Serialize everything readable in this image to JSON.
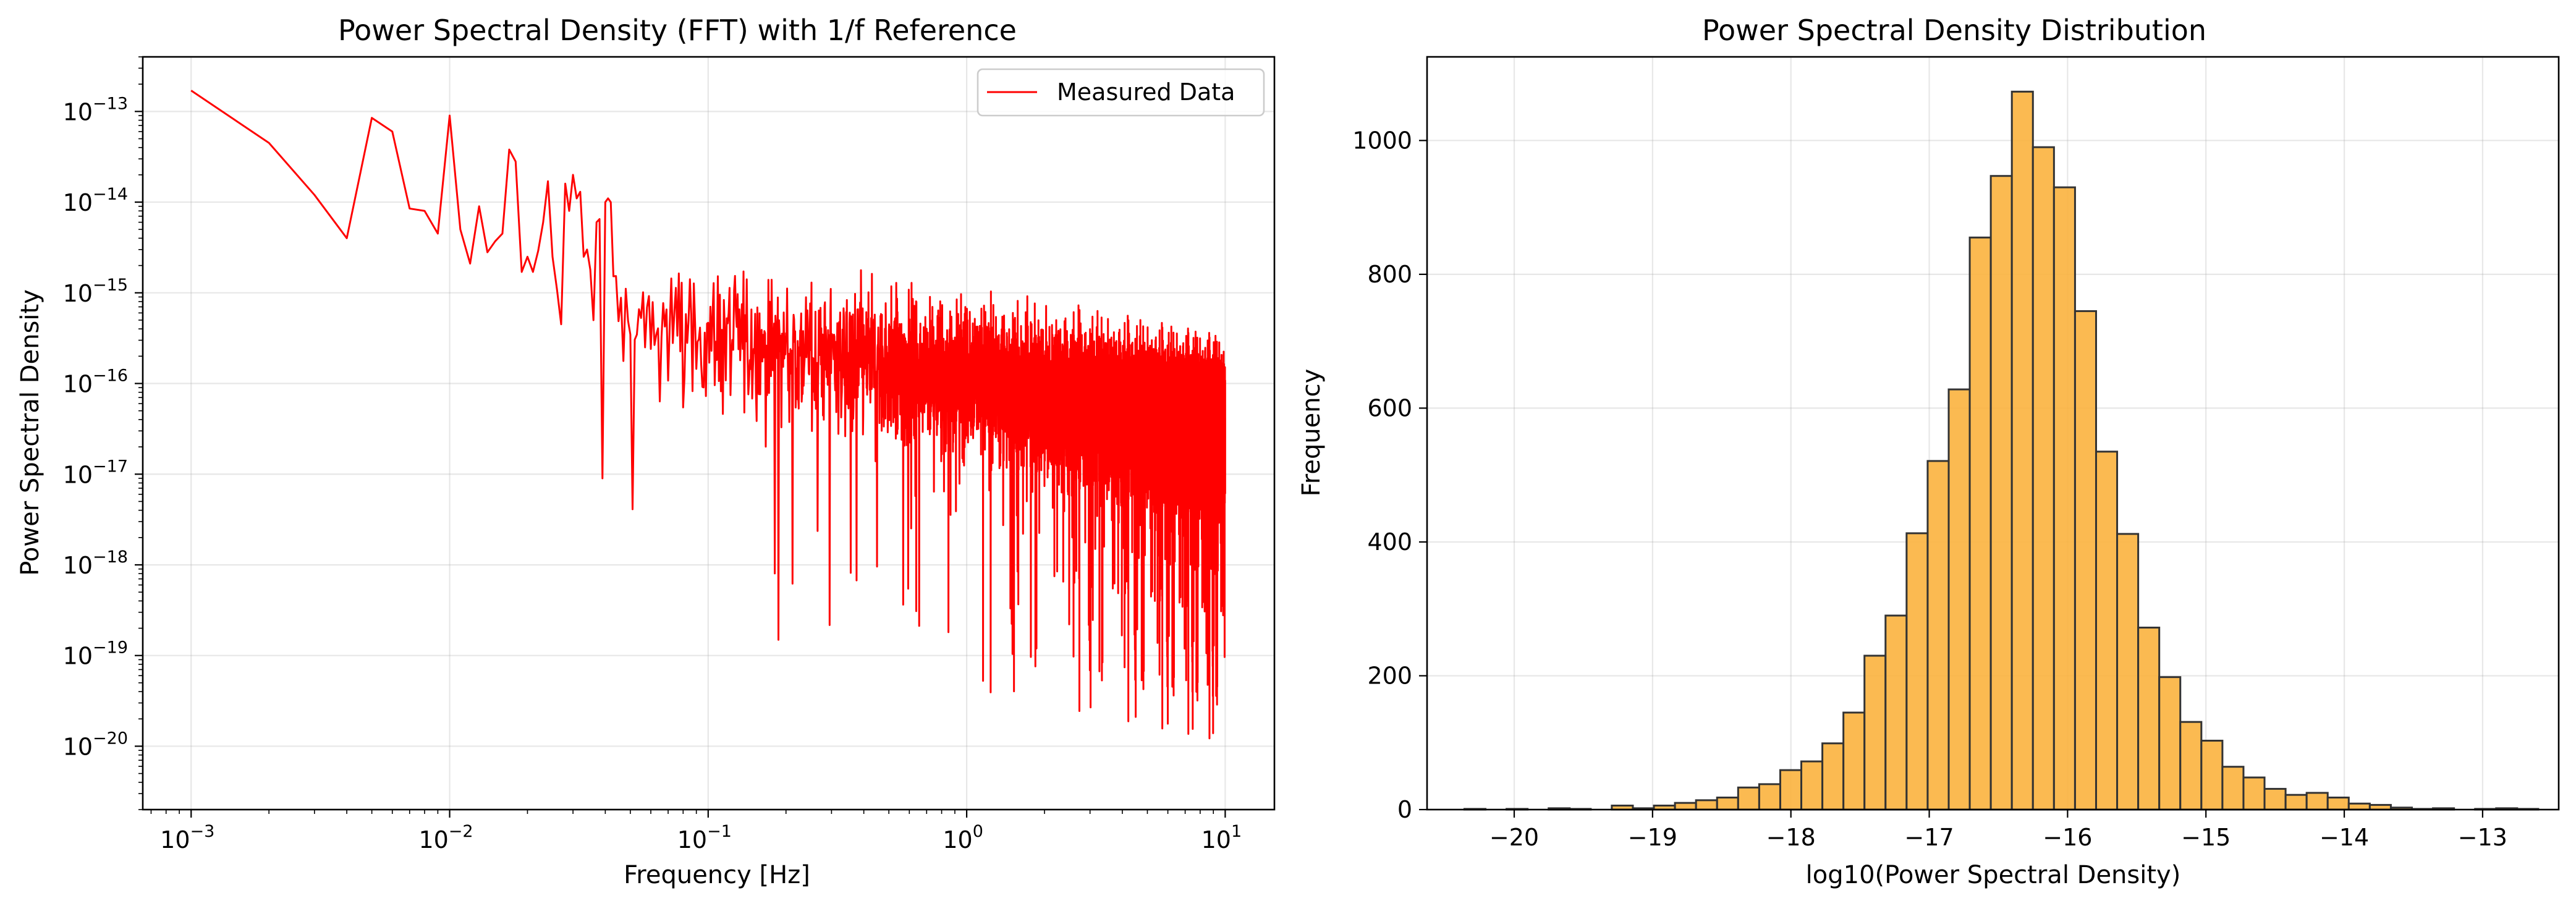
{
  "chart_data": [
    {
      "type": "line",
      "title": "Power Spectral Density (FFT) with 1/f Reference",
      "xlabel": "Frequency [Hz]",
      "ylabel": "Power Spectral Density",
      "xscale": "log",
      "yscale": "log",
      "xlim": [
        0.00065,
        15.5
      ],
      "ylim": [
        2e-21,
        4e-13
      ],
      "x_ticks": [
        {
          "value": 0.001,
          "base": "10",
          "exp": "−3"
        },
        {
          "value": 0.01,
          "base": "10",
          "exp": "−2"
        },
        {
          "value": 0.1,
          "base": "10",
          "exp": "−1"
        },
        {
          "value": 1,
          "base": "10",
          "exp": "0"
        },
        {
          "value": 10,
          "base": "10",
          "exp": "1"
        }
      ],
      "y_ticks": [
        {
          "value": 1e-13,
          "base": "10",
          "exp": "−13"
        },
        {
          "value": 1e-14,
          "base": "10",
          "exp": "−14"
        },
        {
          "value": 1e-15,
          "base": "10",
          "exp": "−15"
        },
        {
          "value": 1e-16,
          "base": "10",
          "exp": "−16"
        },
        {
          "value": 1e-17,
          "base": "10",
          "exp": "−17"
        },
        {
          "value": 1e-18,
          "base": "10",
          "exp": "−18"
        },
        {
          "value": 1e-19,
          "base": "10",
          "exp": "−19"
        },
        {
          "value": 1e-20,
          "base": "10",
          "exp": "−20"
        }
      ],
      "grid": true,
      "legend_position": "top-right",
      "series": [
        {
          "name": "Measured Data",
          "color": "#ff0000",
          "x_start": 0.001,
          "x_step": 0.001,
          "x_end": 10,
          "anchor_points": [
            [
              0.001,
              1.7e-13
            ],
            [
              0.002,
              4.5e-14
            ],
            [
              0.003,
              1.2e-14
            ],
            [
              0.004,
              4e-15
            ],
            [
              0.005,
              8.5e-14
            ],
            [
              0.006,
              6e-14
            ],
            [
              0.007,
              8.5e-15
            ],
            [
              0.008,
              8e-15
            ],
            [
              0.009,
              4.5e-15
            ],
            [
              0.01,
              9e-14
            ],
            [
              0.011,
              5e-15
            ],
            [
              0.012,
              2.1e-15
            ],
            [
              0.013,
              9e-15
            ],
            [
              0.014,
              2.8e-15
            ],
            [
              0.015,
              3.7e-15
            ],
            [
              0.016,
              4.5e-15
            ],
            [
              0.017,
              3.8e-14
            ],
            [
              0.018,
              2.8e-14
            ],
            [
              0.019,
              1.7e-15
            ],
            [
              0.02,
              2.5e-15
            ],
            [
              0.021,
              1.7e-15
            ],
            [
              0.022,
              2.9e-15
            ],
            [
              0.023,
              6e-15
            ],
            [
              0.024,
              1.7e-14
            ],
            [
              0.025,
              2.5e-15
            ],
            [
              0.026,
              1.1e-15
            ],
            [
              0.027,
              4.5e-16
            ],
            [
              0.028,
              1.6e-14
            ],
            [
              0.029,
              8e-15
            ],
            [
              0.03,
              2e-14
            ],
            [
              0.031,
              1.1e-14
            ],
            [
              0.032,
              1.3e-14
            ],
            [
              0.033,
              2.5e-15
            ],
            [
              0.034,
              3e-15
            ],
            [
              0.035,
              1.8e-15
            ],
            [
              0.036,
              5e-16
            ],
            [
              0.037,
              6e-15
            ],
            [
              0.038,
              6.5e-15
            ],
            [
              0.039,
              9e-18
            ],
            [
              0.04,
              1e-14
            ],
            [
              0.041,
              1.1e-14
            ],
            [
              0.042,
              1e-14
            ]
          ],
          "noise_floor_envelope": "approx. 3e-16 to 1e-15 at 0.05–1 Hz, falling to ~5e-17 at 10 Hz; deepest dips reach ~4e-21"
        }
      ]
    },
    {
      "type": "bar",
      "title": "Power Spectral Density Distribution",
      "xlabel": "log10(Power Spectral Density)",
      "ylabel": "Frequency",
      "xlim": [
        -20.63,
        -12.45
      ],
      "ylim": [
        0,
        1125
      ],
      "x_ticks": [
        {
          "value": -20,
          "label": "−20"
        },
        {
          "value": -19,
          "label": "−19"
        },
        {
          "value": -18,
          "label": "−18"
        },
        {
          "value": -17,
          "label": "−17"
        },
        {
          "value": -16,
          "label": "−16"
        },
        {
          "value": -15,
          "label": "−15"
        },
        {
          "value": -14,
          "label": "−14"
        },
        {
          "value": -13,
          "label": "−13"
        }
      ],
      "y_ticks": [
        {
          "value": 0,
          "label": "0"
        },
        {
          "value": 200,
          "label": "200"
        },
        {
          "value": 400,
          "label": "400"
        },
        {
          "value": 600,
          "label": "600"
        },
        {
          "value": 800,
          "label": "800"
        },
        {
          "value": 1000,
          "label": "1000"
        }
      ],
      "grid": true,
      "bar_color": "#fbb23e",
      "edge_color": "#333333",
      "bin_start": -20.36,
      "bin_width": 0.1522,
      "counts": [
        1,
        0,
        1,
        0,
        2,
        1,
        0,
        6,
        2,
        6,
        10,
        14,
        18,
        33,
        38,
        59,
        72,
        99,
        145,
        230,
        290,
        413,
        521,
        628,
        855,
        947,
        1073,
        990,
        930,
        745,
        535,
        412,
        272,
        198,
        131,
        103,
        64,
        48,
        31,
        22,
        25,
        18,
        9,
        7,
        3,
        1,
        2,
        0,
        1,
        2,
        1
      ]
    }
  ]
}
